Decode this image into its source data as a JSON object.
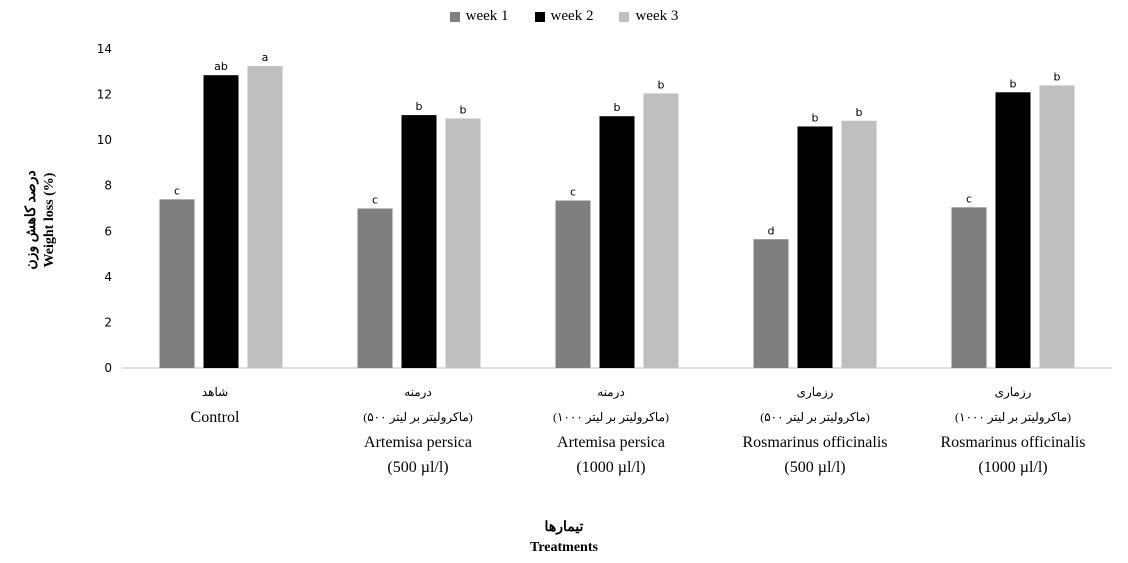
{
  "legend": [
    {
      "name": "week 1",
      "color": "#7f7f7f"
    },
    {
      "name": "week 2",
      "color": "#000000"
    },
    {
      "name": "week 3",
      "color": "#bfbfbf"
    }
  ],
  "axis": {
    "ylabel_fa": "درصد کاهش وزن",
    "ylabel_en": "Weight loss (%)",
    "xlabel_fa": "تیمارها",
    "xlabel_en": "Treatments"
  },
  "categories": [
    {
      "fa1": "شاهد",
      "fa2": "",
      "en1": "Control",
      "en2": ""
    },
    {
      "fa1": "درمنه",
      "fa2": "(۵۰۰ ماکرولیتر بر لیتر)",
      "en1": "Artemisa persica",
      "en2": "(500 µl/l)"
    },
    {
      "fa1": "درمنه",
      "fa2": "(۱۰۰۰ ماکرولیتر بر لیتر)",
      "en1": "Artemisa persica",
      "en2": "(1000 µl/l)"
    },
    {
      "fa1": "رزماری",
      "fa2": "(۵۰۰ ماکرولیتر بر لیتر)",
      "en1": "Rosmarinus officinalis",
      "en2": "(500 µl/l)"
    },
    {
      "fa1": "رزماری",
      "fa2": "(۱۰۰۰ ماکرولیتر بر لیتر)",
      "en1": "Rosmarinus officinalis",
      "en2": "(1000 µl/l)"
    }
  ],
  "chart_data": {
    "type": "bar",
    "categories": [
      "Control",
      "Artemisa persica (500 µl/l)",
      "Artemisa persica (1000 µl/l)",
      "Rosmarinus officinalis (500 µl/l)",
      "Rosmarinus officinalis (1000 µl/l)"
    ],
    "series": [
      {
        "name": "week 1",
        "color": "#7f7f7f",
        "values": [
          7.4,
          7.0,
          7.35,
          5.65,
          7.05
        ],
        "labels": [
          "c",
          "c",
          "c",
          "d",
          "c"
        ]
      },
      {
        "name": "week 2",
        "color": "#000000",
        "values": [
          12.85,
          11.1,
          11.05,
          10.6,
          12.1
        ],
        "labels": [
          "ab",
          "b",
          "b",
          "b",
          "b"
        ]
      },
      {
        "name": "week 3",
        "color": "#bfbfbf",
        "values": [
          13.25,
          10.95,
          12.05,
          10.85,
          12.4
        ],
        "labels": [
          "a",
          "b",
          "b",
          "b",
          "b"
        ]
      }
    ],
    "ylim": [
      0,
      14
    ],
    "yticks": [
      0,
      2,
      4,
      6,
      8,
      10,
      12,
      14
    ],
    "grid": false,
    "legend_position": "top"
  }
}
